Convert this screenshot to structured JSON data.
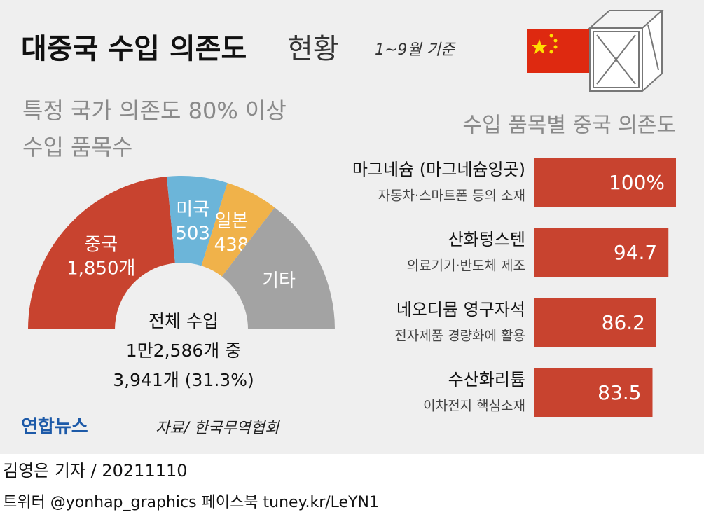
{
  "header": {
    "title_bold": "대중국 수입 의존도",
    "title_light": "현황",
    "note": "1~9월 기준"
  },
  "chart_data": [
    {
      "type": "pie",
      "title_lines": [
        "특정 국가 의존도 80% 이상",
        "수입 품목수"
      ],
      "categories": [
        "중국",
        "미국",
        "일본",
        "기타"
      ],
      "values": [
        1850,
        503,
        438,
        1150
      ],
      "value_labels": [
        "1,850개",
        "503",
        "438",
        null
      ],
      "colors": [
        "#c8432f",
        "#6cb5d9",
        "#f0b24a",
        "#a3a3a3"
      ],
      "center_text": [
        "전체 수입",
        "1만2,586개 중",
        "3,941개 (31.3%)"
      ]
    },
    {
      "type": "bar",
      "orientation": "horizontal",
      "title": "수입 품목별 중국 의존도",
      "categories": [
        "마그네슘 (마그네슘잉곳)",
        "산화텅스텐",
        "네오디뮴 영구자석",
        "수산화리튬"
      ],
      "subtitles": [
        "자동차·스마트폰 등의 소재",
        "의료기기·반도체 제조",
        "전자제품 경량화에 활용",
        "이차전지 핵심소재"
      ],
      "values": [
        100,
        94.7,
        86.2,
        83.5
      ],
      "value_labels": [
        "100%",
        "94.7",
        "86.2",
        "83.5"
      ],
      "color": "#c8432f",
      "xlim": [
        0,
        100
      ]
    }
  ],
  "source": {
    "logo": "연합뉴스",
    "source": "자료/ 한국무역협회"
  },
  "footer": {
    "byline": "김영은 기자 / 20211110",
    "social": "트위터 @yonhap_graphics  페이스북 tuney.kr/LeYN1"
  }
}
